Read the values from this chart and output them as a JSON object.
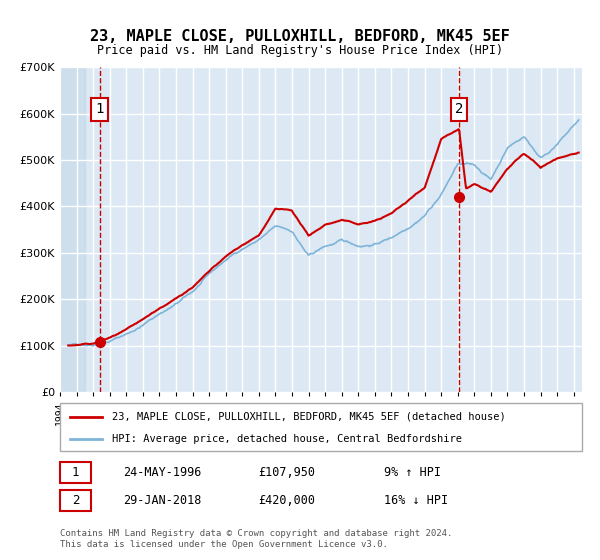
{
  "title": "23, MAPLE CLOSE, PULLOXHILL, BEDFORD, MK45 5EF",
  "subtitle": "Price paid vs. HM Land Registry's House Price Index (HPI)",
  "xlabel": "",
  "ylabel": "",
  "ylim": [
    0,
    700000
  ],
  "xlim_start": 1994.0,
  "xlim_end": 2025.5,
  "yticks": [
    0,
    100000,
    200000,
    300000,
    400000,
    500000,
    600000,
    700000
  ],
  "ytick_labels": [
    "£0",
    "£100K",
    "£200K",
    "£300K",
    "£400K",
    "£500K",
    "£600K",
    "£700K"
  ],
  "transaction1_date": 1996.39,
  "transaction1_price": 107950,
  "transaction1_label": "1",
  "transaction2_date": 2018.08,
  "transaction2_price": 420000,
  "transaction2_label": "2",
  "bg_color": "#dce9f5",
  "hatch_color": "#b8cfe0",
  "grid_color": "#ffffff",
  "hpi_color": "#7fb4d8",
  "price_color": "#cc0000",
  "transaction_vline_color": "#cc0000",
  "legend_box_color": "#cc0000",
  "legend_box2_color": "#cc0000",
  "table_border_color": "#cc0000",
  "footer_text": "Contains HM Land Registry data © Crown copyright and database right 2024.\nThis data is licensed under the Open Government Licence v3.0.",
  "legend_label1": "23, MAPLE CLOSE, PULLOXHILL, BEDFORD, MK45 5EF (detached house)",
  "legend_label2": "HPI: Average price, detached house, Central Bedfordshire",
  "row1_label": "1",
  "row1_date": "24-MAY-1996",
  "row1_price": "£107,950",
  "row1_hpi": "9% ↑ HPI",
  "row2_label": "2",
  "row2_date": "29-JAN-2018",
  "row2_price": "£420,000",
  "row2_hpi": "16% ↓ HPI"
}
